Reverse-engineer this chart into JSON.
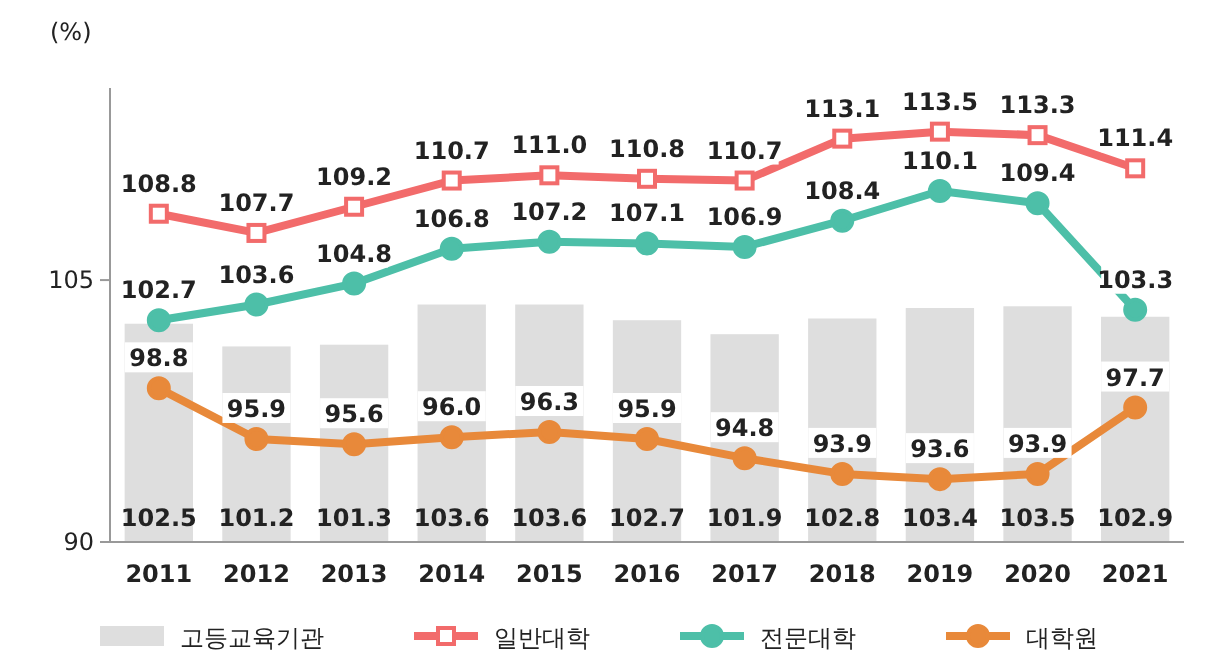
{
  "chart_data": {
    "type": "bar",
    "ylabel": "(%)",
    "categories": [
      "2011",
      "2012",
      "2013",
      "2014",
      "2015",
      "2016",
      "2017",
      "2018",
      "2019",
      "2020",
      "2021"
    ],
    "series": [
      {
        "name": "고등교육기관",
        "color": "#dedede",
        "values": [
          102.5,
          101.2,
          101.3,
          103.6,
          103.6,
          102.7,
          101.9,
          102.8,
          103.4,
          103.5,
          102.9
        ]
      },
      {
        "name": "일반대학",
        "type": "line",
        "color": "#f26b6b",
        "marker": "square",
        "values": [
          108.8,
          107.7,
          109.2,
          110.7,
          111.0,
          110.8,
          110.7,
          113.1,
          113.5,
          113.3,
          111.4
        ],
        "value_labels": [
          "108.8",
          "107.7",
          "109.2",
          "110.7",
          "111.0",
          "110.8",
          "110.7",
          "113.1",
          "113.5",
          "113.3",
          "111.4"
        ]
      },
      {
        "name": "전문대학",
        "type": "line",
        "color": "#4dbfa8",
        "marker": "circle",
        "values": [
          102.7,
          103.6,
          104.8,
          106.8,
          107.2,
          107.1,
          106.9,
          108.4,
          110.1,
          109.4,
          103.3
        ]
      },
      {
        "name": "대학원",
        "type": "line",
        "color": "#e8893a",
        "marker": "circle",
        "values": [
          98.8,
          95.9,
          95.6,
          96.0,
          96.3,
          95.9,
          94.8,
          93.9,
          93.6,
          93.9,
          97.7
        ],
        "value_labels": [
          "98.8",
          "95.9",
          "95.6",
          "96.0",
          "96.3",
          "95.9",
          "94.8",
          "93.9",
          "93.6",
          "93.9",
          "97.7"
        ]
      }
    ],
    "ylim": [
      90,
      116
    ],
    "yticks": [
      90,
      105
    ],
    "data_labels": true,
    "legend": "bottom",
    "grid": false
  }
}
